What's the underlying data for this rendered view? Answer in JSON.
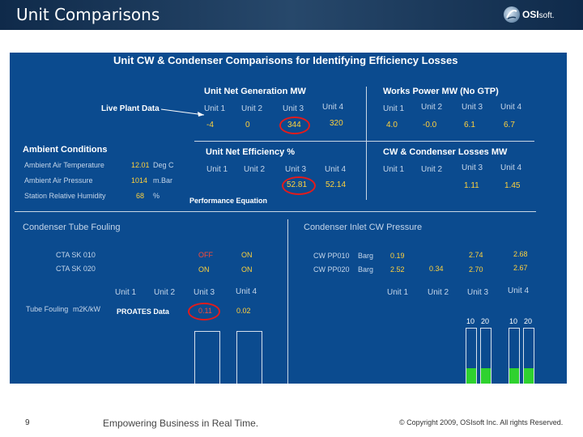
{
  "header": {
    "title": "Unit Comparisons",
    "logo_bold": "OSI",
    "logo_rest": "soft."
  },
  "panel": {
    "title": "Unit CW & Condenser Comparisons for Identifying Efficiency Losses",
    "live_plant_label": "Live Plant Data",
    "net_gen": {
      "title": "Unit Net Generation MW",
      "units": [
        "Unit 1",
        "Unit 2",
        "Unit 3",
        "Unit 4"
      ],
      "values": [
        "-4",
        "0",
        "344",
        "320"
      ]
    },
    "works_power": {
      "title": "Works Power MW (No GTP)",
      "units": [
        "Unit 1",
        "Unit 2",
        "Unit 3",
        "Unit 4"
      ],
      "values": [
        "4.0",
        "-0.0",
        "6.1",
        "6.7"
      ]
    },
    "net_eff": {
      "title": "Unit Net Efficiency %",
      "units": [
        "Unit 1",
        "Unit 2",
        "Unit 3",
        "Unit 4"
      ],
      "values": [
        "52.81",
        "52.14"
      ]
    },
    "cw_losses": {
      "title": "CW & Condenser Losses MW",
      "units": [
        "Unit 1",
        "Unit 2",
        "Unit 3",
        "Unit 4"
      ],
      "values": [
        "1.11",
        "1.45"
      ]
    },
    "ambient": {
      "title": "Ambient Conditions",
      "rows": [
        {
          "label": "Ambient Air Temperature",
          "value": "12.01",
          "unit": "Deg C"
        },
        {
          "label": "Ambient Air Pressure",
          "value": "1014",
          "unit": "m.Bar"
        },
        {
          "label": "Station Relative Humidity",
          "value": "68",
          "unit": "%"
        }
      ]
    },
    "performance_label": "Performance Equation",
    "tube_fouling": {
      "title": "Condenser Tube Fouling",
      "rows": [
        {
          "label": "CTA SK 010",
          "u3": "OFF",
          "u4": "ON"
        },
        {
          "label": "CTA SK 020",
          "u3": "ON",
          "u4": "ON"
        }
      ],
      "units": [
        "Unit 1",
        "Unit 2",
        "Unit 3",
        "Unit 4"
      ],
      "fouling_label": "Tube Fouling",
      "fouling_unit": "m2K/kW",
      "proates_label": "PROATES Data",
      "values": [
        "0.11",
        "0.02"
      ]
    },
    "cw_pressure": {
      "title": "Condenser Inlet CW Pressure",
      "rows": [
        {
          "label": "CW PP010",
          "unit": "Barg",
          "u1": "0.19",
          "u2": "",
          "u3": "2.74",
          "u4": "2.68"
        },
        {
          "label": "CW PP020",
          "unit": "Barg",
          "u1": "2.52",
          "u2": "0.34",
          "u3": "2.70",
          "u4": "2.67"
        }
      ],
      "units": [
        "Unit 1",
        "Unit 2",
        "Unit 3",
        "Unit 4"
      ],
      "pump_labels_u3": [
        "10",
        "20"
      ],
      "pump_labels_u4": [
        "10",
        "20"
      ]
    }
  },
  "footer": {
    "page_number": "9",
    "tagline": "Empowering Business in Real Time.",
    "copyright": "© Copyright 2009, OSIsoft Inc. All rights Reserved."
  }
}
